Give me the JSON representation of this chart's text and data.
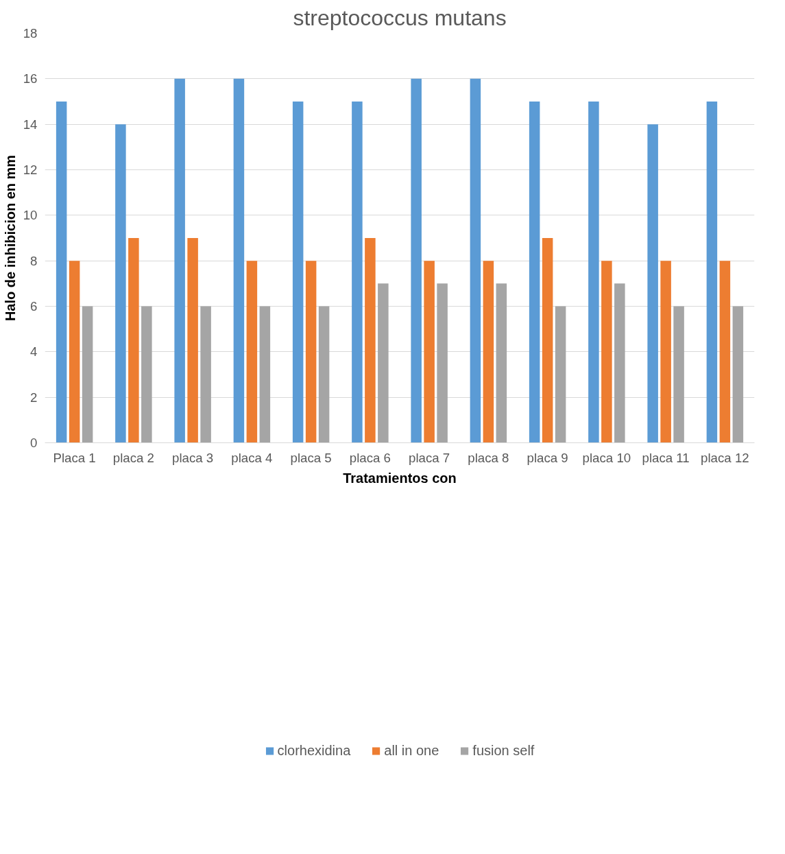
{
  "chart_data": {
    "type": "bar",
    "title": "streptococcus mutans",
    "xlabel": "Tratamientos con",
    "ylabel": "Halo de inhibicion en mm",
    "categories": [
      "Placa 1",
      "placa 2",
      "placa 3",
      "placa 4",
      "placa 5",
      "placa 6",
      "placa 7",
      "placa 8",
      "placa 9",
      "placa 10",
      "placa 11",
      "placa 12"
    ],
    "series": [
      {
        "name": "clorhexidina",
        "color": "#5b9bd5",
        "values": [
          15,
          14,
          16,
          16,
          15,
          15,
          16,
          16,
          15,
          15,
          14,
          15
        ]
      },
      {
        "name": "all in one",
        "color": "#ed7d31",
        "values": [
          8,
          9,
          9,
          8,
          8,
          9,
          8,
          8,
          9,
          8,
          8,
          8
        ]
      },
      {
        "name": "fusion self",
        "color": "#a5a5a5",
        "values": [
          6,
          6,
          6,
          6,
          6,
          7,
          7,
          7,
          6,
          7,
          6,
          6
        ]
      }
    ],
    "ylim": [
      0,
      18
    ],
    "yticks": [
      0,
      2,
      4,
      6,
      8,
      10,
      12,
      14,
      16,
      18
    ],
    "grid": "y",
    "legend": "bottom"
  }
}
